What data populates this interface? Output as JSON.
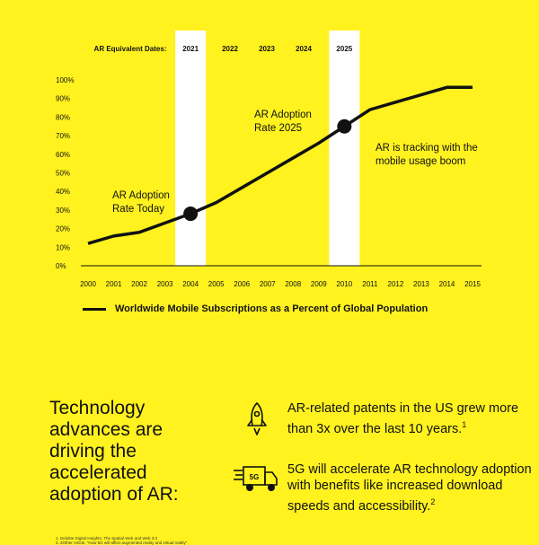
{
  "chart_data": {
    "type": "line",
    "ar_dates_label": "AR Equivalent Dates:",
    "ar_dates": [
      {
        "year": 2004,
        "label": "2021",
        "highlight": true
      },
      {
        "year": 2006,
        "label": "2022",
        "highlight": false
      },
      {
        "year": 2007,
        "label": "2023",
        "highlight": false
      },
      {
        "year": 2009,
        "label": "2024",
        "highlight": false
      },
      {
        "year": 2010,
        "label": "2025",
        "highlight": true
      }
    ],
    "x": [
      2000,
      2001,
      2002,
      2003,
      2004,
      2005,
      2006,
      2007,
      2008,
      2009,
      2010,
      2011,
      2012,
      2013,
      2014,
      2015
    ],
    "x_tick_labels": [
      "2000",
      "2001",
      "2002",
      "2003",
      "2004",
      "2005",
      "2006",
      "2007",
      "2008",
      "2009",
      "2010",
      "2011",
      "2012",
      "2013",
      "2014",
      "2015"
    ],
    "y_tick_labels": [
      "0%",
      "10%",
      "20%",
      "30%",
      "40%",
      "50%",
      "60%",
      "70%",
      "80%",
      "90%",
      "100%"
    ],
    "ylim": [
      0,
      100
    ],
    "xlim": [
      2000,
      2015
    ],
    "series": [
      {
        "name": "Worldwide Mobile Subscriptions as a Percent of Global Population",
        "color": "#111111",
        "values": [
          12,
          16,
          18,
          23,
          28,
          34,
          42,
          50,
          58,
          66,
          75,
          84,
          88,
          92,
          96,
          96
        ]
      }
    ],
    "markers": [
      {
        "x": 2004,
        "y": 28,
        "label_lines": [
          "AR Adoption",
          "Rate Today"
        ]
      },
      {
        "x": 2010,
        "y": 75,
        "label_lines": [
          "AR Adoption",
          "Rate 2025"
        ]
      }
    ],
    "annotation_lines": [
      "AR is tracking with the",
      "mobile usage boom"
    ],
    "colors": {
      "background": "#FFF21F",
      "highlight_band": "#FFFFFF",
      "line": "#111111"
    }
  },
  "legend": {
    "label": "Worldwide Mobile Subscriptions as a Percent of Global Population"
  },
  "headline": "Technology advances are driving the accelerated adoption of AR:",
  "facts": [
    {
      "icon": "rocket-icon",
      "text": "AR-related patents in the US grew more than 3x over the last 10 years.",
      "ref": "1"
    },
    {
      "icon": "5g-truck-icon",
      "icon_text": "5G",
      "text": "5G will accelerate AR technology adoption with benefits like increased download speeds and accessibility.",
      "ref": "2"
    }
  ],
  "footnotes": [
    "1. Deloitte Digital Insights, The Spatial Web and Web 3.0",
    "2. 2Other Article, \"How 5G will affect augmented reality and virtual reality\""
  ]
}
